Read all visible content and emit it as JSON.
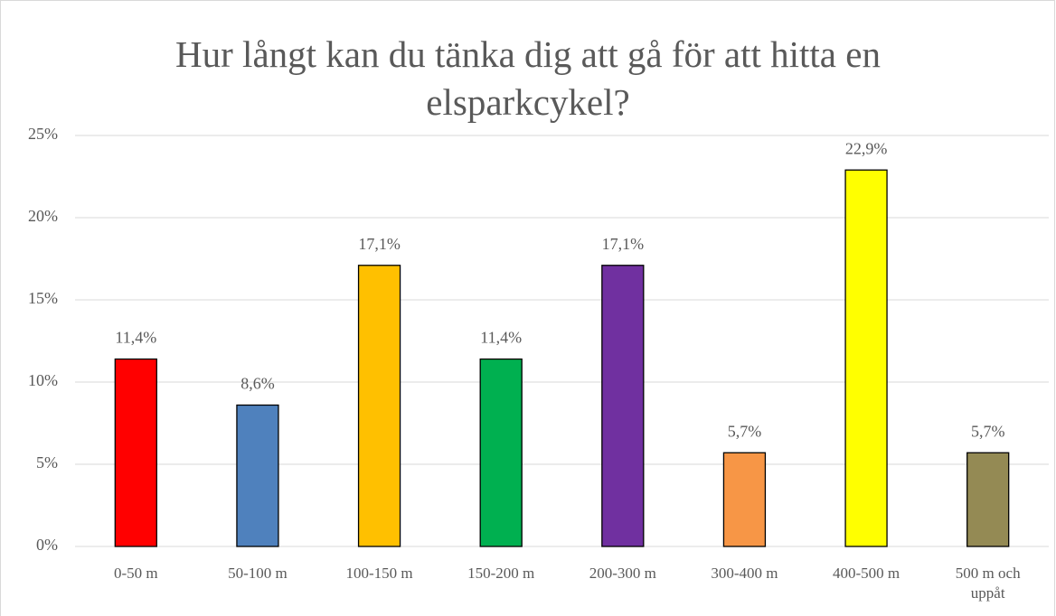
{
  "chart_data": {
    "type": "bar",
    "title": "Hur långt kan du tänka dig att gå för att hitta en elsparkcykel?",
    "categories": [
      "0-50 m",
      "50-100 m",
      "100-150 m",
      "150-200 m",
      "200-300 m",
      "300-400 m",
      "400-500 m",
      "500 m och uppåt"
    ],
    "values": [
      11.4,
      8.6,
      17.1,
      11.4,
      17.1,
      5.7,
      22.9,
      5.7
    ],
    "value_labels": [
      "11,4%",
      "8,6%",
      "17,1%",
      "11,4%",
      "17,1%",
      "5,7%",
      "22,9%",
      "5,7%"
    ],
    "colors": [
      "#ff0000",
      "#4f81bd",
      "#ffc000",
      "#00b050",
      "#7030a0",
      "#f79646",
      "#ffff00",
      "#948a54"
    ],
    "ylim": [
      0,
      25
    ],
    "yticks": [
      {
        "value": 0,
        "label": "0%"
      },
      {
        "value": 5,
        "label": "5%"
      },
      {
        "value": 10,
        "label": "10%"
      },
      {
        "value": 15,
        "label": "15%"
      },
      {
        "value": 20,
        "label": "20%"
      },
      {
        "value": 25,
        "label": "25%"
      }
    ],
    "grid": true
  }
}
